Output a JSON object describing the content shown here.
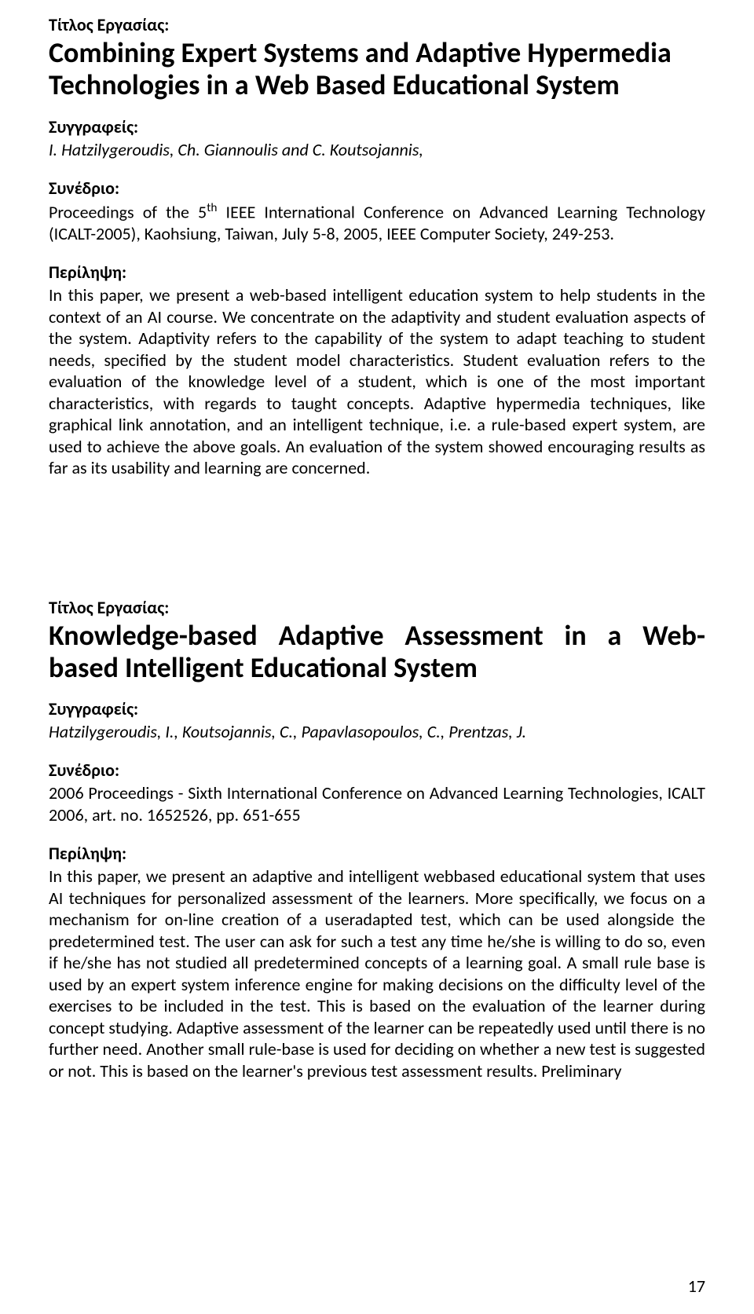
{
  "entry1": {
    "title_label": "Τίτλος Εργασίας:",
    "title": "Combining Expert Systems and Adaptive Hypermedia Technologies in a Web Based Educational System",
    "authors_label": "Συγγραφείς:",
    "authors": "I. Hatzilygeroudis, Ch. Giannoulis and C. Koutsojannis,",
    "conf_label": "Συνέδριο:",
    "conf_prefix": "Proceedings of the 5",
    "conf_sup": "th",
    "conf_rest": " IEEE International Conference on Advanced Learning Technology (ICALT-2005), Kaohsiung, Taiwan, July 5-8, 2005, IEEE Computer Society, 249-253.",
    "abstract_label": "Περίληψη:",
    "abstract": "In this paper, we present a web-based intelligent education system to help students in the context of an AI course. We concentrate on the adaptivity and student evaluation aspects of the system. Adaptivity refers to the capability of the system to adapt teaching to student needs, specified by the student model characteristics. Student evaluation refers to the evaluation of the knowledge level of a student, which is one of the most important characteristics, with regards to taught concepts. Adaptive hypermedia techniques, like graphical link annotation, and an intelligent technique, i.e. a rule-based expert system, are used to achieve the above goals. An evaluation of the system showed encouraging results as far as its usability and learning are concerned."
  },
  "entry2": {
    "title_label": "Τίτλος Εργασίας:",
    "title_line1": "Knowledge-based Adaptive Assessment in a Web-",
    "title_line2": "based Intelligent Educational System",
    "authors_label": "Συγγραφείς:",
    "authors": "Hatzilygeroudis, I., Koutsojannis, C., Papavlasopoulos, C., Prentzas, J.",
    "conf_label": "Συνέδριο:",
    "conf": "2006 Proceedings - Sixth International Conference on Advanced Learning Technologies, ICALT 2006, art. no. 1652526, pp. 651-655",
    "abstract_label": "Περίληψη:",
    "abstract": "In this paper, we present an adaptive and intelligent webbased educational system that uses AI techniques for personalized assessment of the learners. More specifically, we focus on a mechanism for on-line creation of a useradapted test, which can be used alongside the predetermined test. The user can ask for such a test any time he/she is willing to do so, even if he/she has not studied all predetermined concepts of a learning goal. A small rule base is used by an expert system inference engine for making decisions on the difficulty level of the exercises to be included in the test. This is based on the evaluation of the learner during concept studying. Adaptive assessment of the learner can be repeatedly used until there is no further need. Another small rule-base is used for deciding on whether a new test is suggested or not. This is based on the learner's previous test assessment results. Preliminary"
  },
  "page_number": "17"
}
